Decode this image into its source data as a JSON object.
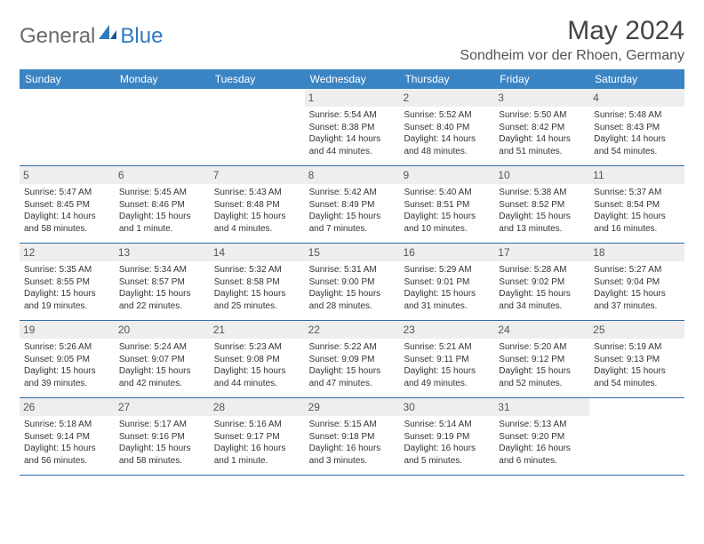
{
  "brand": {
    "text1": "General",
    "text2": "Blue"
  },
  "title": "May 2024",
  "location": "Sondheim vor der Rhoen, Germany",
  "colors": {
    "header_bg": "#3b84c4",
    "header_text": "#ffffff",
    "daynum_bg": "#eeeeee",
    "row_border": "#2f6ea8",
    "logo_gray": "#6a6a6a",
    "logo_blue": "#2f7ac0"
  },
  "weekdays": [
    "Sunday",
    "Monday",
    "Tuesday",
    "Wednesday",
    "Thursday",
    "Friday",
    "Saturday"
  ],
  "weeks": [
    [
      {
        "n": "",
        "sr": "",
        "ss": "",
        "dl": ""
      },
      {
        "n": "",
        "sr": "",
        "ss": "",
        "dl": ""
      },
      {
        "n": "",
        "sr": "",
        "ss": "",
        "dl": ""
      },
      {
        "n": "1",
        "sr": "Sunrise: 5:54 AM",
        "ss": "Sunset: 8:38 PM",
        "dl": "Daylight: 14 hours and 44 minutes."
      },
      {
        "n": "2",
        "sr": "Sunrise: 5:52 AM",
        "ss": "Sunset: 8:40 PM",
        "dl": "Daylight: 14 hours and 48 minutes."
      },
      {
        "n": "3",
        "sr": "Sunrise: 5:50 AM",
        "ss": "Sunset: 8:42 PM",
        "dl": "Daylight: 14 hours and 51 minutes."
      },
      {
        "n": "4",
        "sr": "Sunrise: 5:48 AM",
        "ss": "Sunset: 8:43 PM",
        "dl": "Daylight: 14 hours and 54 minutes."
      }
    ],
    [
      {
        "n": "5",
        "sr": "Sunrise: 5:47 AM",
        "ss": "Sunset: 8:45 PM",
        "dl": "Daylight: 14 hours and 58 minutes."
      },
      {
        "n": "6",
        "sr": "Sunrise: 5:45 AM",
        "ss": "Sunset: 8:46 PM",
        "dl": "Daylight: 15 hours and 1 minute."
      },
      {
        "n": "7",
        "sr": "Sunrise: 5:43 AM",
        "ss": "Sunset: 8:48 PM",
        "dl": "Daylight: 15 hours and 4 minutes."
      },
      {
        "n": "8",
        "sr": "Sunrise: 5:42 AM",
        "ss": "Sunset: 8:49 PM",
        "dl": "Daylight: 15 hours and 7 minutes."
      },
      {
        "n": "9",
        "sr": "Sunrise: 5:40 AM",
        "ss": "Sunset: 8:51 PM",
        "dl": "Daylight: 15 hours and 10 minutes."
      },
      {
        "n": "10",
        "sr": "Sunrise: 5:38 AM",
        "ss": "Sunset: 8:52 PM",
        "dl": "Daylight: 15 hours and 13 minutes."
      },
      {
        "n": "11",
        "sr": "Sunrise: 5:37 AM",
        "ss": "Sunset: 8:54 PM",
        "dl": "Daylight: 15 hours and 16 minutes."
      }
    ],
    [
      {
        "n": "12",
        "sr": "Sunrise: 5:35 AM",
        "ss": "Sunset: 8:55 PM",
        "dl": "Daylight: 15 hours and 19 minutes."
      },
      {
        "n": "13",
        "sr": "Sunrise: 5:34 AM",
        "ss": "Sunset: 8:57 PM",
        "dl": "Daylight: 15 hours and 22 minutes."
      },
      {
        "n": "14",
        "sr": "Sunrise: 5:32 AM",
        "ss": "Sunset: 8:58 PM",
        "dl": "Daylight: 15 hours and 25 minutes."
      },
      {
        "n": "15",
        "sr": "Sunrise: 5:31 AM",
        "ss": "Sunset: 9:00 PM",
        "dl": "Daylight: 15 hours and 28 minutes."
      },
      {
        "n": "16",
        "sr": "Sunrise: 5:29 AM",
        "ss": "Sunset: 9:01 PM",
        "dl": "Daylight: 15 hours and 31 minutes."
      },
      {
        "n": "17",
        "sr": "Sunrise: 5:28 AM",
        "ss": "Sunset: 9:02 PM",
        "dl": "Daylight: 15 hours and 34 minutes."
      },
      {
        "n": "18",
        "sr": "Sunrise: 5:27 AM",
        "ss": "Sunset: 9:04 PM",
        "dl": "Daylight: 15 hours and 37 minutes."
      }
    ],
    [
      {
        "n": "19",
        "sr": "Sunrise: 5:26 AM",
        "ss": "Sunset: 9:05 PM",
        "dl": "Daylight: 15 hours and 39 minutes."
      },
      {
        "n": "20",
        "sr": "Sunrise: 5:24 AM",
        "ss": "Sunset: 9:07 PM",
        "dl": "Daylight: 15 hours and 42 minutes."
      },
      {
        "n": "21",
        "sr": "Sunrise: 5:23 AM",
        "ss": "Sunset: 9:08 PM",
        "dl": "Daylight: 15 hours and 44 minutes."
      },
      {
        "n": "22",
        "sr": "Sunrise: 5:22 AM",
        "ss": "Sunset: 9:09 PM",
        "dl": "Daylight: 15 hours and 47 minutes."
      },
      {
        "n": "23",
        "sr": "Sunrise: 5:21 AM",
        "ss": "Sunset: 9:11 PM",
        "dl": "Daylight: 15 hours and 49 minutes."
      },
      {
        "n": "24",
        "sr": "Sunrise: 5:20 AM",
        "ss": "Sunset: 9:12 PM",
        "dl": "Daylight: 15 hours and 52 minutes."
      },
      {
        "n": "25",
        "sr": "Sunrise: 5:19 AM",
        "ss": "Sunset: 9:13 PM",
        "dl": "Daylight: 15 hours and 54 minutes."
      }
    ],
    [
      {
        "n": "26",
        "sr": "Sunrise: 5:18 AM",
        "ss": "Sunset: 9:14 PM",
        "dl": "Daylight: 15 hours and 56 minutes."
      },
      {
        "n": "27",
        "sr": "Sunrise: 5:17 AM",
        "ss": "Sunset: 9:16 PM",
        "dl": "Daylight: 15 hours and 58 minutes."
      },
      {
        "n": "28",
        "sr": "Sunrise: 5:16 AM",
        "ss": "Sunset: 9:17 PM",
        "dl": "Daylight: 16 hours and 1 minute."
      },
      {
        "n": "29",
        "sr": "Sunrise: 5:15 AM",
        "ss": "Sunset: 9:18 PM",
        "dl": "Daylight: 16 hours and 3 minutes."
      },
      {
        "n": "30",
        "sr": "Sunrise: 5:14 AM",
        "ss": "Sunset: 9:19 PM",
        "dl": "Daylight: 16 hours and 5 minutes."
      },
      {
        "n": "31",
        "sr": "Sunrise: 5:13 AM",
        "ss": "Sunset: 9:20 PM",
        "dl": "Daylight: 16 hours and 6 minutes."
      },
      {
        "n": "",
        "sr": "",
        "ss": "",
        "dl": ""
      }
    ]
  ]
}
